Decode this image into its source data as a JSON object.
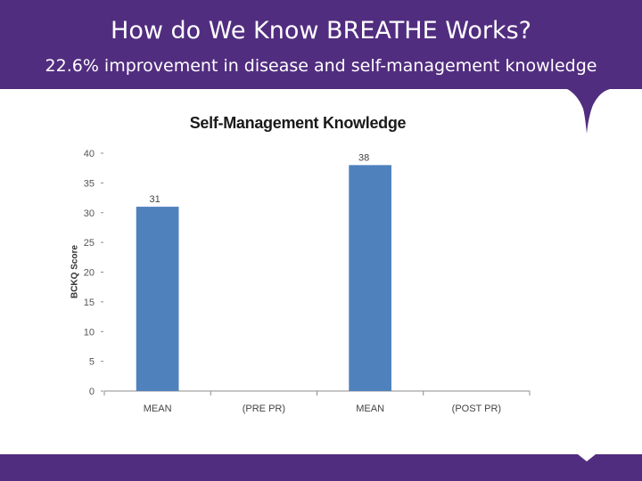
{
  "slide": {
    "title": "How do We Know BREATHE Works?",
    "subtitle": "22.6% improvement in disease and self-management knowledge"
  },
  "colors": {
    "brand_purple": "#512d7f",
    "bar_blue": "#4f81bd"
  },
  "chart_data": {
    "type": "bar",
    "title": "Self-Management Knowledge",
    "xlabel": "",
    "ylabel": "BCKQ Score",
    "categories": [
      "MEAN",
      "(PRE PR)",
      "MEAN",
      "(POST PR)"
    ],
    "series": [
      {
        "values": [
          31,
          null,
          38,
          null
        ]
      }
    ],
    "data_labels": [
      "31",
      "",
      "38",
      ""
    ],
    "ylim": [
      0,
      40
    ],
    "yticks": [
      0,
      5,
      10,
      15,
      20,
      25,
      30,
      35,
      40
    ],
    "grid": false,
    "legend": "none"
  }
}
